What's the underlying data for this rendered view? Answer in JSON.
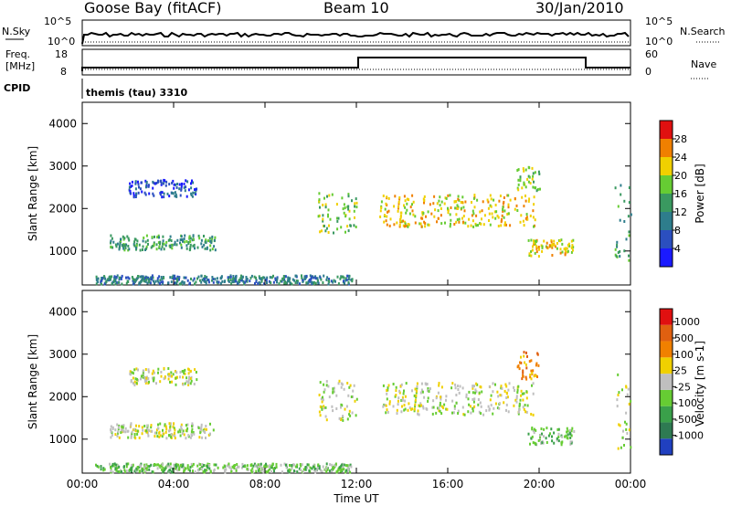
{
  "header": {
    "station": "Goose Bay (fitACF)",
    "beam": "Beam 10",
    "date": "30/Jan/2010"
  },
  "top_panels": {
    "nsky_label": "N.Sky",
    "nsearch_label": "N.Search",
    "noise_ticks": [
      "10^5",
      "10^0"
    ],
    "freq_label_1": "Freq.",
    "freq_label_2": "[MHz]",
    "freq_ticks": [
      "18",
      "8"
    ],
    "nave_label": "Nave",
    "nave_ticks": [
      "60",
      "0"
    ],
    "cpid_label": "CPID",
    "cpid_text": "themis (tau) 3310"
  },
  "colors": {
    "power": [
      "#1a1aff",
      "#2b4fbf",
      "#2e7d8c",
      "#3a9960",
      "#66cc33",
      "#f0d000",
      "#f08000",
      "#e01010"
    ],
    "velocity": [
      "#2040c0",
      "#2e7a52",
      "#3aa04a",
      "#66cc33",
      "#bfbfbf",
      "#f0d000",
      "#f08000",
      "#e06010",
      "#e01010"
    ]
  },
  "chart_data": [
    {
      "type": "heatmap",
      "panel": "power",
      "ylabel": "Slant Range [km]",
      "xlabel": "Time UT",
      "x_ticks": [
        "00:00",
        "04:00",
        "08:00",
        "12:00",
        "16:00",
        "20:00",
        "00:00"
      ],
      "y_ticks": [
        1000,
        2000,
        3000,
        4000
      ],
      "xlim_hours": [
        0,
        24
      ],
      "ylim": [
        200,
        4500
      ],
      "colorbar_label": "Power [dB]",
      "colorbar_ticks": [
        4,
        8,
        12,
        16,
        20,
        24,
        28
      ],
      "regions": [
        {
          "t0": 1.2,
          "t1": 5.8,
          "r0": 1050,
          "r1": 1400,
          "level": 3
        },
        {
          "t0": 2.0,
          "t1": 5.0,
          "r0": 2300,
          "r1": 2700,
          "level": 1
        },
        {
          "t0": 10.3,
          "t1": 12.0,
          "r0": 1450,
          "r1": 2400,
          "level": 4
        },
        {
          "t0": 13.0,
          "t1": 19.8,
          "r0": 1600,
          "r1": 2350,
          "level": 5
        },
        {
          "t0": 19.0,
          "t1": 20.0,
          "r0": 2400,
          "r1": 3000,
          "level": 4
        },
        {
          "t0": 19.5,
          "t1": 21.5,
          "r0": 900,
          "r1": 1300,
          "level": 5
        },
        {
          "t0": 0.5,
          "t1": 11.8,
          "r0": 250,
          "r1": 450,
          "level": 2
        },
        {
          "t0": 23.3,
          "t1": 24.0,
          "r0": 800,
          "r1": 2600,
          "level": 3
        }
      ]
    },
    {
      "type": "heatmap",
      "panel": "velocity",
      "ylabel": "Slant Range [km]",
      "xlabel": "Time UT",
      "x_ticks": [
        "00:00",
        "04:00",
        "08:00",
        "12:00",
        "16:00",
        "20:00",
        "00:00"
      ],
      "y_ticks": [
        1000,
        2000,
        3000,
        4000
      ],
      "xlim_hours": [
        0,
        24
      ],
      "ylim": [
        200,
        4500
      ],
      "colorbar_label": "Velocity [m s-1]",
      "colorbar_ticks": [
        1000,
        500,
        100,
        25,
        -25,
        -100,
        -500,
        -1000
      ],
      "regions": [
        {
          "t0": 1.2,
          "t1": 5.8,
          "r0": 1050,
          "r1": 1400,
          "level": 4
        },
        {
          "t0": 2.0,
          "t1": 5.0,
          "r0": 2300,
          "r1": 2700,
          "level": 4
        },
        {
          "t0": 10.3,
          "t1": 12.0,
          "r0": 1450,
          "r1": 2400,
          "level": 4
        },
        {
          "t0": 13.0,
          "t1": 19.8,
          "r0": 1600,
          "r1": 2350,
          "level": 4
        },
        {
          "t0": 19.0,
          "t1": 20.0,
          "r0": 2400,
          "r1": 3100,
          "level": 6
        },
        {
          "t0": 19.5,
          "t1": 21.5,
          "r0": 900,
          "r1": 1300,
          "level": 3
        },
        {
          "t0": 0.5,
          "t1": 11.8,
          "r0": 250,
          "r1": 450,
          "level": 3
        },
        {
          "t0": 23.3,
          "t1": 24.0,
          "r0": 800,
          "r1": 2600,
          "level": 4
        }
      ]
    }
  ]
}
